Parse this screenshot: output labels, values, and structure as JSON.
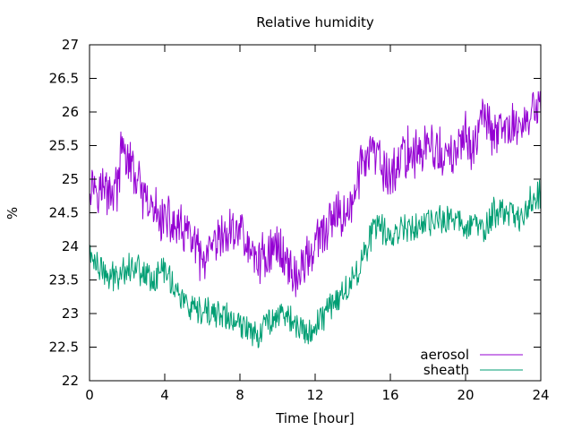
{
  "chart_data": {
    "type": "line",
    "title": "Relative humidity",
    "xlabel": "Time [hour]",
    "ylabel": "%",
    "xlim": [
      0,
      24
    ],
    "ylim": [
      22,
      27
    ],
    "xticks": [
      0,
      4,
      8,
      12,
      16,
      20,
      24
    ],
    "xtick_labels": [
      "0",
      "4",
      "8",
      "12",
      "16",
      "20",
      "24"
    ],
    "yticks": [
      22,
      22.5,
      23,
      23.5,
      24,
      24.5,
      25,
      25.5,
      26,
      26.5,
      27
    ],
    "ytick_labels": [
      "22",
      "22.5",
      "23",
      "23.5",
      "24",
      "24.5",
      "25",
      "25.5",
      "26",
      "26.5",
      "27"
    ],
    "grid": false,
    "legend_position": "bottom-right",
    "series": [
      {
        "name": "aerosol",
        "color": "#9400d3",
        "x": [
          0,
          0.5,
          1,
          1.5,
          1.75,
          2,
          2.5,
          3,
          3.5,
          4,
          4.5,
          5,
          5.5,
          6,
          6.5,
          7,
          7.5,
          8,
          8.5,
          9,
          9.5,
          10,
          10.5,
          11,
          11.5,
          12,
          12.5,
          13,
          13.5,
          14,
          14.5,
          15,
          15.5,
          16,
          16.5,
          17,
          17.5,
          18,
          18.5,
          19,
          19.5,
          20,
          20.5,
          21,
          21.5,
          22,
          22.5,
          23,
          23.5,
          24
        ],
        "values": [
          25.0,
          24.9,
          24.8,
          24.9,
          25.5,
          25.3,
          25.0,
          24.6,
          24.5,
          24.4,
          24.3,
          24.2,
          24.1,
          23.7,
          23.9,
          24.1,
          24.2,
          24.3,
          23.9,
          23.8,
          23.9,
          24.0,
          23.8,
          23.5,
          23.8,
          24.0,
          24.2,
          24.4,
          24.5,
          24.6,
          25.3,
          25.4,
          25.2,
          25.0,
          25.3,
          25.4,
          25.4,
          25.5,
          25.4,
          25.3,
          25.4,
          25.6,
          25.5,
          26.0,
          25.6,
          25.7,
          25.8,
          25.8,
          26.0,
          26.1
        ]
      },
      {
        "name": "sheath",
        "color": "#009e73",
        "x": [
          0,
          0.5,
          1,
          1.5,
          2,
          2.5,
          3,
          3.5,
          4,
          4.5,
          5,
          5.5,
          6,
          6.5,
          7,
          7.5,
          8,
          8.5,
          9,
          9.5,
          10,
          10.5,
          11,
          11.5,
          12,
          12.5,
          13,
          13.5,
          14,
          14.5,
          15,
          15.5,
          16,
          16.5,
          17,
          17.5,
          18,
          18.5,
          19,
          19.5,
          20,
          20.5,
          21,
          21.5,
          22,
          22.5,
          23,
          23.5,
          24
        ],
        "values": [
          23.9,
          23.7,
          23.5,
          23.6,
          23.7,
          23.7,
          23.6,
          23.5,
          23.7,
          23.4,
          23.2,
          23.0,
          23.0,
          23.0,
          23.0,
          22.9,
          22.8,
          22.8,
          22.7,
          22.9,
          23.0,
          23.0,
          22.8,
          22.7,
          22.8,
          23.0,
          23.2,
          23.3,
          23.5,
          23.8,
          24.2,
          24.3,
          24.1,
          24.3,
          24.3,
          24.3,
          24.3,
          24.4,
          24.4,
          24.4,
          24.3,
          24.4,
          24.2,
          24.5,
          24.5,
          24.5,
          24.4,
          24.7,
          24.8
        ]
      }
    ]
  }
}
